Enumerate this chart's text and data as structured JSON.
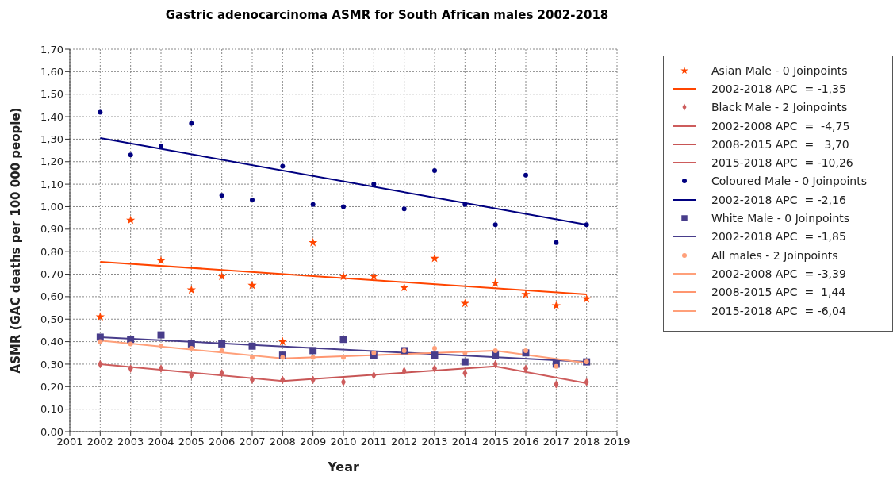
{
  "chart_data": {
    "type": "scatter",
    "title": "Gastric adenocarcinoma ASMR for South African males 2002-2018",
    "xlabel": "Year",
    "ylabel": "ASMR (GAC deaths per 100 000 people)",
    "x": [
      2002,
      2003,
      2004,
      2005,
      2006,
      2007,
      2008,
      2009,
      2010,
      2011,
      2012,
      2013,
      2014,
      2015,
      2016,
      2017,
      2018
    ],
    "xlim": [
      2001,
      2019
    ],
    "xticks": [
      2001,
      2002,
      2003,
      2004,
      2005,
      2006,
      2007,
      2008,
      2009,
      2010,
      2011,
      2012,
      2013,
      2014,
      2015,
      2016,
      2017,
      2018,
      2019
    ],
    "ylim": [
      0,
      1.7
    ],
    "yticks": [
      {
        "value": 0,
        "label": "0,00"
      },
      {
        "value": 0.1,
        "label": "0,10"
      },
      {
        "value": 0.2,
        "label": "0,20"
      },
      {
        "value": 0.3,
        "label": "0,30"
      },
      {
        "value": 0.4,
        "label": "0,40"
      },
      {
        "value": 0.5,
        "label": "0,50"
      },
      {
        "value": 0.6,
        "label": "0,60"
      },
      {
        "value": 0.7,
        "label": "0,70"
      },
      {
        "value": 0.8,
        "label": "0,80"
      },
      {
        "value": 0.9,
        "label": "0,90"
      },
      {
        "value": 1.0,
        "label": "1,00"
      },
      {
        "value": 1.1,
        "label": "1,10"
      },
      {
        "value": 1.2,
        "label": "1,20"
      },
      {
        "value": 1.3,
        "label": "1,30"
      },
      {
        "value": 1.4,
        "label": "1,40"
      },
      {
        "value": 1.5,
        "label": "1,50"
      },
      {
        "value": 1.6,
        "label": "1,60"
      },
      {
        "value": 1.7,
        "label": "1,70"
      }
    ],
    "grid": true,
    "legend": "right",
    "series": [
      {
        "name": "Asian Male - 0 Joinpoints",
        "marker": "star",
        "color": "#ff4500",
        "values": [
          0.51,
          0.94,
          0.76,
          0.63,
          0.69,
          0.65,
          0.4,
          0.84,
          0.69,
          0.69,
          0.64,
          0.77,
          0.57,
          0.66,
          0.61,
          0.56,
          0.59
        ]
      },
      {
        "name": "2002-2018 APC  = -1,35",
        "type": "line",
        "marker": "none",
        "color": "#ff4500",
        "x": [
          2002,
          2018
        ],
        "values": [
          0.755,
          0.61
        ]
      },
      {
        "name": "Black Male - 2 Joinpoints",
        "marker": "diamond",
        "color": "#cd5c5c",
        "values": [
          0.3,
          0.28,
          0.28,
          0.25,
          0.26,
          0.23,
          0.23,
          0.23,
          0.22,
          0.25,
          0.27,
          0.28,
          0.26,
          0.3,
          0.28,
          0.21,
          0.22
        ]
      },
      {
        "name": "2002-2008 APC  =  -4,75",
        "type": "line",
        "marker": "none",
        "color": "#cd5c5c",
        "x": [
          2002,
          2008
        ],
        "values": [
          0.3,
          0.225
        ]
      },
      {
        "name": "2008-2015 APC  =   3,70",
        "type": "line",
        "marker": "none",
        "color": "#c75555",
        "x": [
          2008,
          2015
        ],
        "values": [
          0.225,
          0.29
        ]
      },
      {
        "name": "2015-2018 APC  = -10,26",
        "type": "line",
        "marker": "none",
        "color": "#cd5c5c",
        "x": [
          2015,
          2018
        ],
        "values": [
          0.29,
          0.215
        ]
      },
      {
        "name": "Coloured Male - 0 Joinpoints",
        "marker": "circle",
        "color": "#000080",
        "values": [
          1.42,
          1.23,
          1.27,
          1.37,
          1.05,
          1.03,
          1.18,
          1.01,
          1.0,
          1.1,
          0.99,
          1.16,
          1.01,
          0.92,
          1.14,
          0.84,
          0.92
        ]
      },
      {
        "name": "2002-2018 APC  = -2,16",
        "type": "line",
        "marker": "none",
        "color": "#000080",
        "x": [
          2002,
          2018
        ],
        "values": [
          1.305,
          0.92
        ]
      },
      {
        "name": "White Male - 0 Joinpoints",
        "marker": "square",
        "color": "#483d8b",
        "values": [
          0.42,
          0.41,
          0.43,
          0.39,
          0.39,
          0.38,
          0.34,
          0.36,
          0.41,
          0.34,
          0.36,
          0.34,
          0.31,
          0.34,
          0.35,
          0.3,
          0.31
        ]
      },
      {
        "name": "2002-2018 APC  = -1,85",
        "type": "line",
        "marker": "none",
        "color": "#483d8b",
        "x": [
          2002,
          2018
        ],
        "values": [
          0.42,
          0.31
        ]
      },
      {
        "name": "All males - 2 Joinpoints",
        "marker": "circle",
        "color": "#ffa07a",
        "values": [
          0.4,
          0.39,
          0.38,
          0.37,
          0.36,
          0.33,
          0.33,
          0.33,
          0.33,
          0.35,
          0.36,
          0.37,
          0.35,
          0.36,
          0.36,
          0.29,
          0.31
        ]
      },
      {
        "name": "2002-2008 APC  = -3,39",
        "type": "line",
        "marker": "none",
        "color": "#ffa07a",
        "x": [
          2002,
          2008
        ],
        "values": [
          0.405,
          0.325
        ]
      },
      {
        "name": "2008-2015 APC  =  1,44",
        "type": "line",
        "marker": "none",
        "color": "#ff9670",
        "x": [
          2008,
          2015
        ],
        "values": [
          0.325,
          0.36
        ]
      },
      {
        "name": "2015-2018 APC  = -6,04",
        "type": "line",
        "marker": "none",
        "color": "#ffa07a",
        "x": [
          2015,
          2018
        ],
        "values": [
          0.36,
          0.305
        ]
      }
    ]
  }
}
